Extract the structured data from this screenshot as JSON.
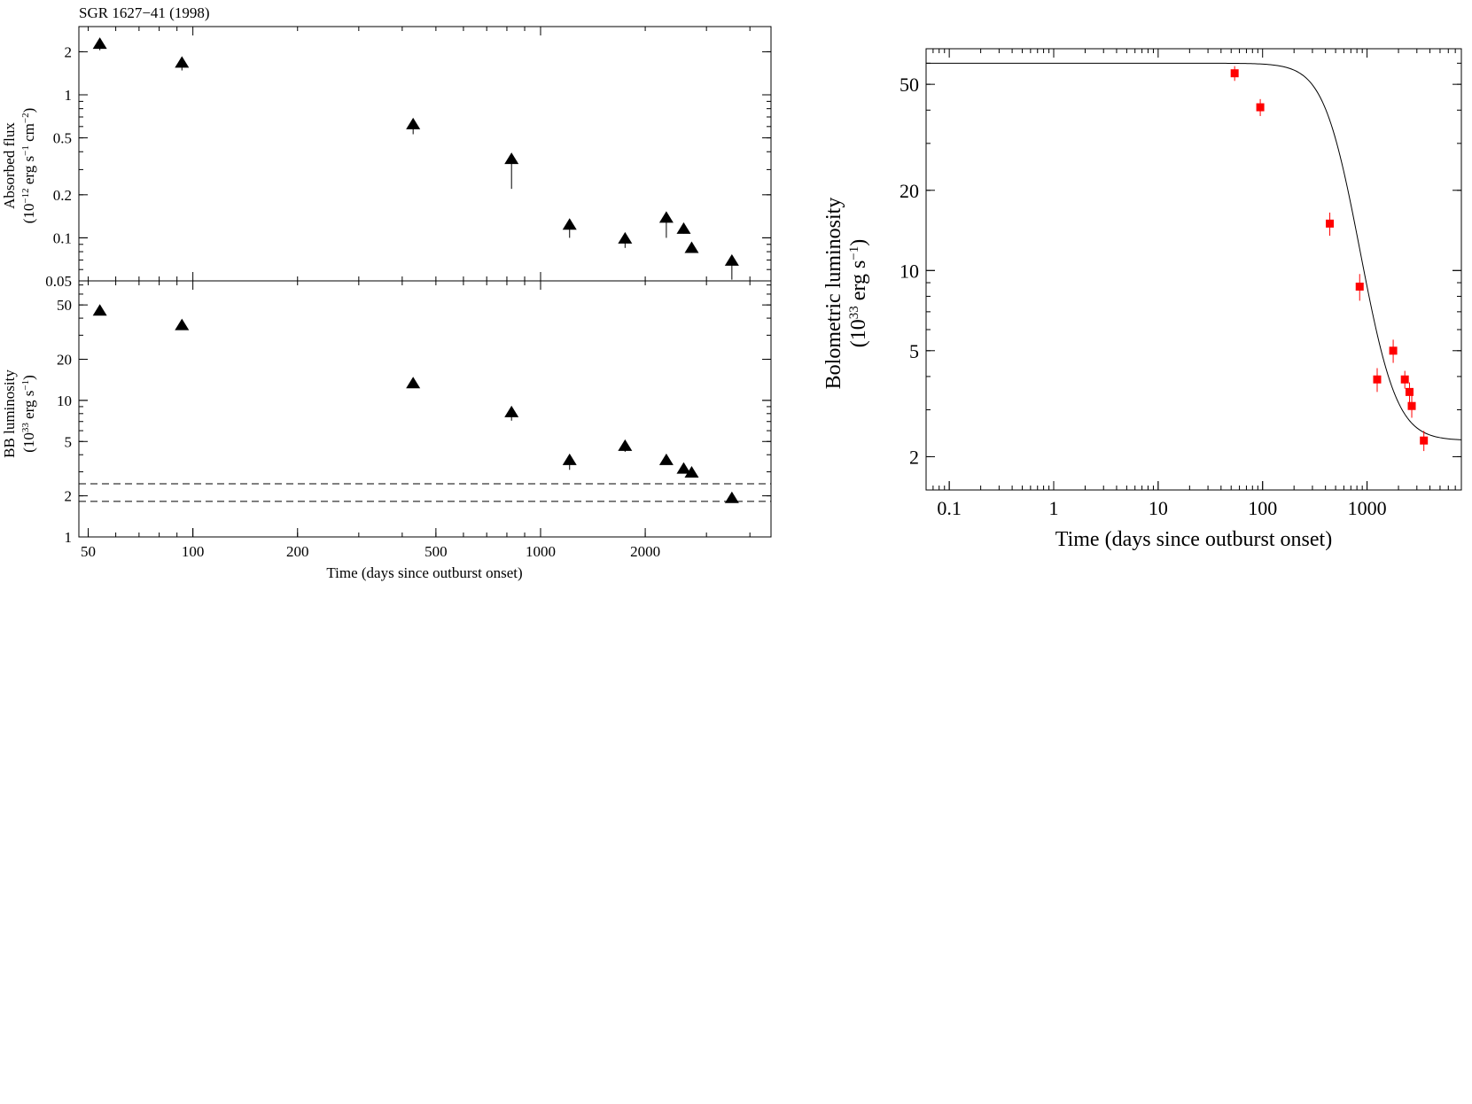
{
  "chart_data": [
    {
      "id": "flux",
      "type": "scatter",
      "title": "SGR 1627−41 (1998)",
      "xlabel": "",
      "ylabel": "Absorbed flux",
      "ylabel2_prefix": "(10",
      "ylabel2_exp1": "−12",
      "ylabel2_mid": " erg s",
      "ylabel2_exp2": "−1",
      "ylabel2_mid2": " cm",
      "ylabel2_exp3": "−2",
      "ylabel2_suffix": ")",
      "xscale": "log",
      "yscale": "log",
      "xlim": [
        47,
        4600
      ],
      "ylim": [
        0.05,
        3.0
      ],
      "yticks": [
        0.05,
        0.1,
        0.2,
        0.5,
        1,
        2
      ],
      "yticklabels": [
        "0.05",
        "0.1",
        "0.2",
        "0.5",
        "1",
        "2"
      ],
      "marker": "triangle",
      "series": [
        {
          "name": "Absorbed flux",
          "x": [
            54,
            93,
            430,
            825,
            1212,
            1750,
            2300,
            2580,
            2720,
            3550
          ],
          "y": [
            2.3,
            1.7,
            0.63,
            0.36,
            0.125,
            0.1,
            0.14,
            0.117,
            0.086,
            0.07
          ],
          "err_low": [
            0.25,
            0.22,
            0.1,
            0.14,
            0.025,
            0.015,
            0.04,
            0.01,
            0.006,
            0.019
          ],
          "err_high": [
            0,
            0,
            0,
            0,
            0,
            0,
            0,
            0,
            0,
            0
          ]
        }
      ]
    },
    {
      "id": "bb",
      "type": "scatter",
      "title": "",
      "xlabel": "Time (days since outburst onset)",
      "ylabel": "BB luminosity",
      "ylabel2_prefix": "(10",
      "ylabel2_exp1": "33",
      "ylabel2_mid": " erg s",
      "ylabel2_exp2": "−1",
      "ylabel2_suffix": ")",
      "xscale": "log",
      "yscale": "log",
      "xlim": [
        47,
        4600
      ],
      "ylim": [
        1.0,
        75
      ],
      "xticks": [
        50,
        100,
        200,
        500,
        1000,
        2000
      ],
      "xticklabels": [
        "50",
        "100",
        "200",
        "500",
        "1000",
        "2000"
      ],
      "yticks": [
        1,
        2,
        5,
        10,
        20,
        50
      ],
      "yticklabels": [
        "1",
        "2",
        "5",
        "10",
        "20",
        "50"
      ],
      "marker": "triangle",
      "hlines": [
        2.45,
        1.82
      ],
      "series": [
        {
          "name": "BB luminosity",
          "x": [
            54,
            93,
            430,
            825,
            1212,
            1750,
            2300,
            2580,
            2720,
            3550
          ],
          "y": [
            46,
            36,
            13.5,
            8.3,
            3.7,
            4.7,
            3.7,
            3.2,
            3.0,
            1.95
          ],
          "err_low": [
            0,
            0,
            0,
            1.2,
            0.6,
            0.5,
            0,
            0,
            0,
            0.15
          ],
          "err_high": [
            0,
            0,
            0,
            0,
            0.3,
            0,
            0,
            0,
            0,
            0
          ]
        }
      ]
    },
    {
      "id": "bolo",
      "type": "scatter",
      "title": "",
      "xlabel": "Time (days since outburst onset)",
      "ylabel": "Bolometric luminosity",
      "ylabel2_prefix": "(10",
      "ylabel2_exp1": "33",
      "ylabel2_mid": " erg s",
      "ylabel2_exp2": "−1",
      "ylabel2_suffix": ")",
      "xscale": "log",
      "yscale": "log",
      "xlim": [
        0.06,
        8000
      ],
      "ylim": [
        1.5,
        68
      ],
      "xticks": [
        0.1,
        1,
        10,
        100,
        1000
      ],
      "xticklabels": [
        "0.1",
        "1",
        "10",
        "100",
        "1000"
      ],
      "yticks": [
        2,
        5,
        10,
        20,
        50
      ],
      "yticklabels": [
        "2",
        "5",
        "10",
        "20",
        "50"
      ],
      "marker": "square",
      "marker_color": "#ff0000",
      "model_curve": {
        "L0": 60,
        "Lq": 2.3,
        "tau": 500,
        "alpha": 3
      },
      "series": [
        {
          "name": "Bolometric luminosity",
          "x": [
            54,
            95,
            440,
            850,
            1250,
            1780,
            2300,
            2550,
            2680,
            3500
          ],
          "y": [
            55,
            41,
            15,
            8.7,
            3.9,
            5.0,
            3.9,
            3.5,
            3.1,
            2.3
          ],
          "err": [
            3.5,
            3,
            1.5,
            1,
            0.4,
            0.5,
            0.3,
            0.3,
            0.3,
            0.2
          ]
        }
      ]
    }
  ]
}
